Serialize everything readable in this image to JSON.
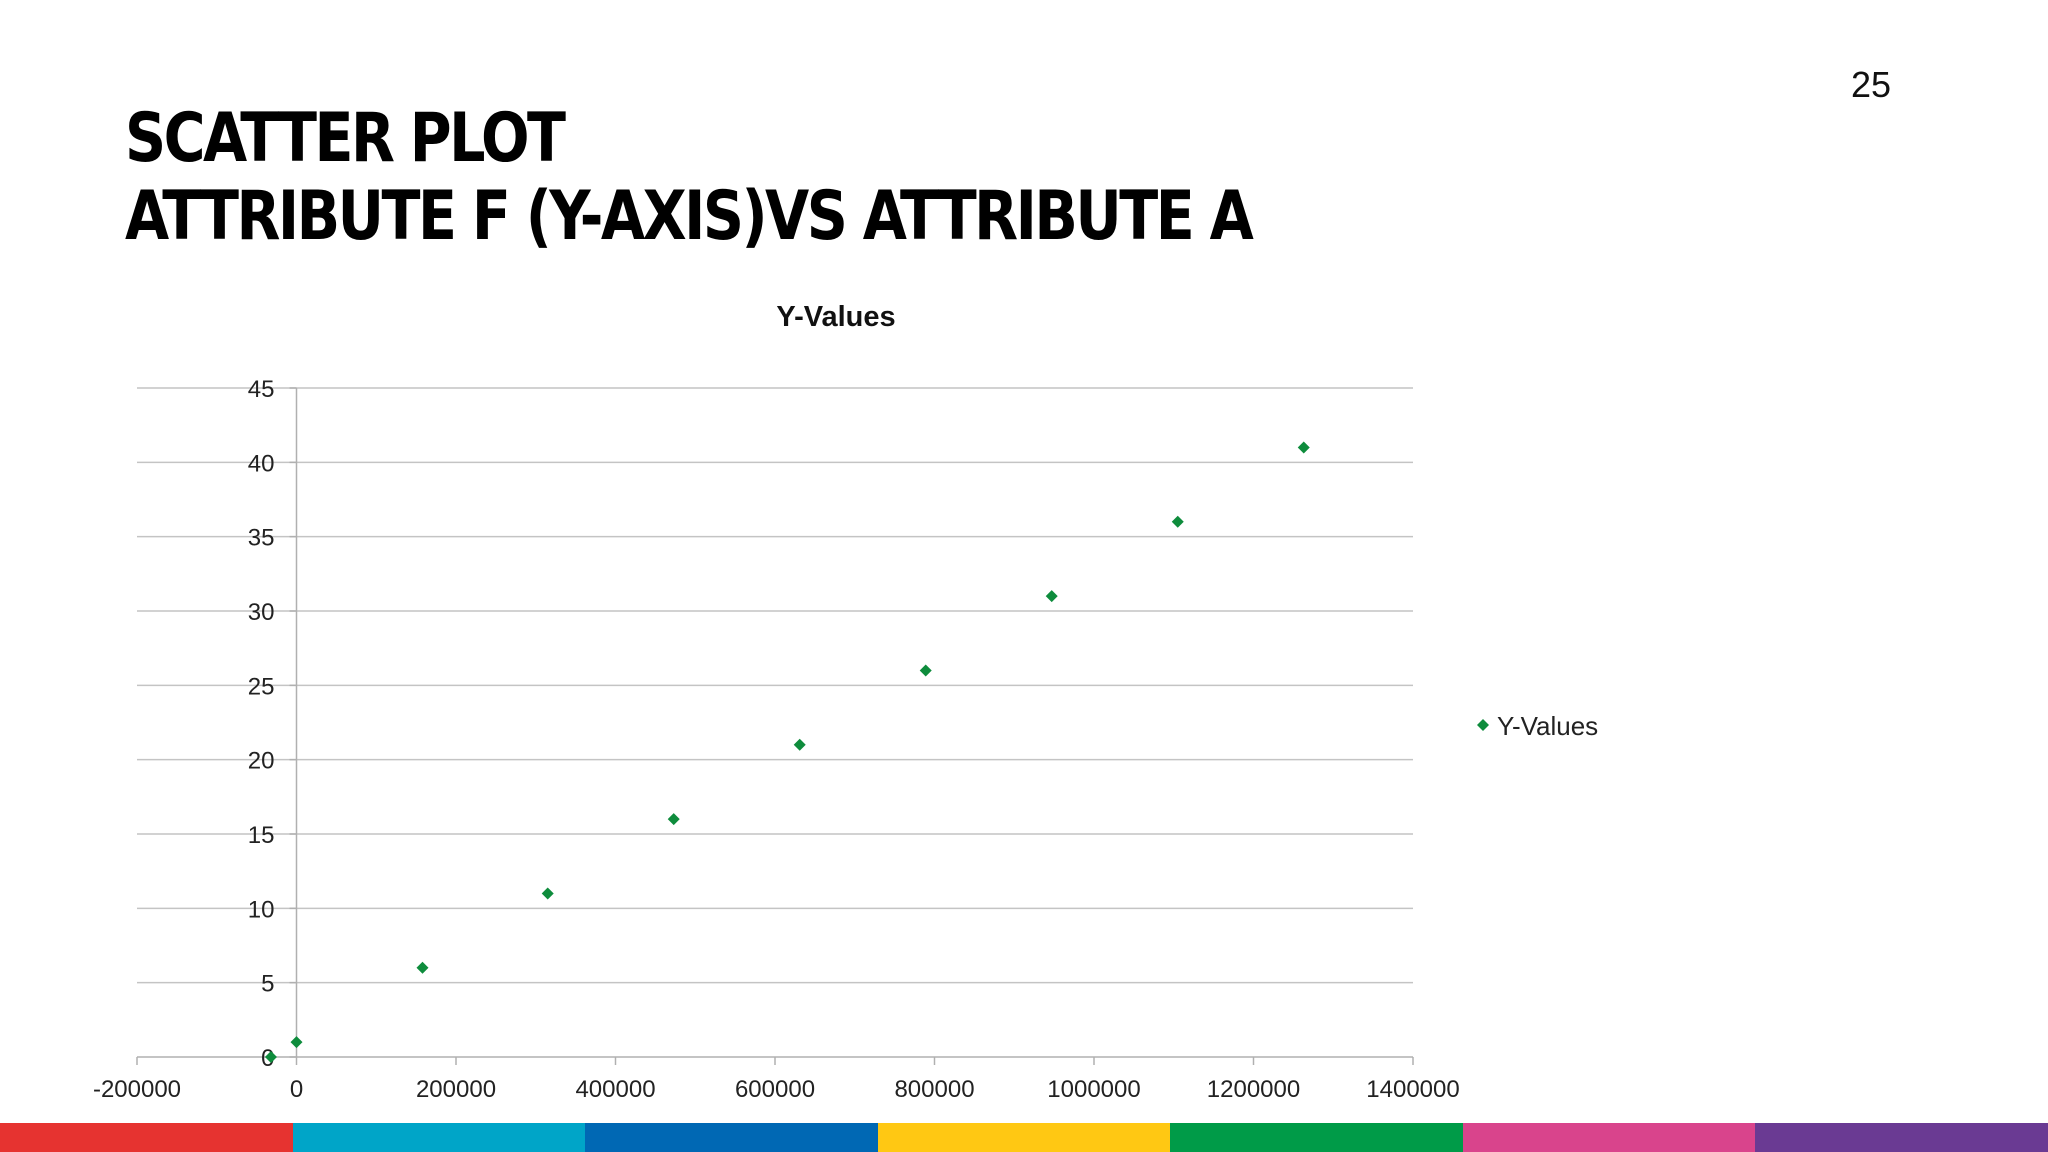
{
  "slide": {
    "number": "25",
    "title_line1": "SCATTER PLOT",
    "title_line2": "ATTRIBUTE F (Y-AXIS)VS ATTRIBUTE A"
  },
  "footer_colors": [
    "#e63330",
    "#00a5c8",
    "#0068b4",
    "#ffc813",
    "#009b48",
    "#d9448c",
    "#6a3a93"
  ],
  "chart_data": {
    "type": "scatter",
    "title": "Y-Values",
    "legend": {
      "label": "Y-Values",
      "position": "right"
    },
    "marker_color": "#0e8c3c",
    "marker_shape": "diamond",
    "xlim": [
      -200000,
      1400000
    ],
    "ylim": [
      0,
      45
    ],
    "xticks": [
      -200000,
      0,
      200000,
      400000,
      600000,
      800000,
      1000000,
      1200000,
      1400000
    ],
    "yticks": [
      0,
      5,
      10,
      15,
      20,
      25,
      30,
      35,
      40,
      45
    ],
    "grid": "horizontal",
    "series": [
      {
        "name": "Y-Values",
        "x": [
          -32000,
          0,
          158000,
          315000,
          473000,
          631000,
          789000,
          947000,
          1105000,
          1263000
        ],
        "y": [
          0,
          1,
          6,
          11,
          16,
          21,
          26,
          31,
          36,
          41
        ]
      }
    ]
  }
}
